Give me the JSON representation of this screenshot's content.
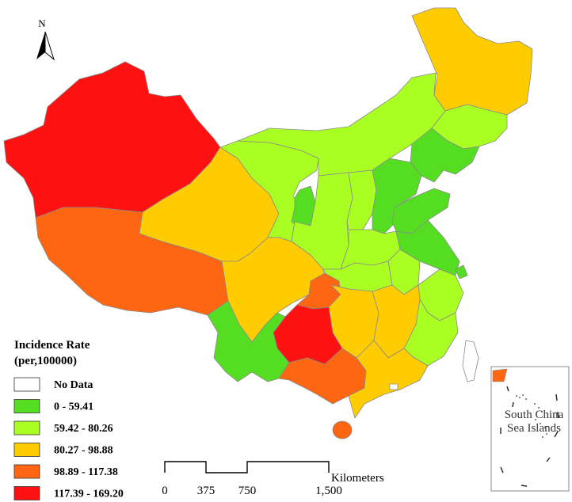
{
  "map": {
    "north_label": "N",
    "legend": {
      "title_line1": "Incidence Rate",
      "title_line2": "(per,100000)",
      "classes": [
        {
          "label": "No Data",
          "color": "#ffffff"
        },
        {
          "label": "0 - 59.41",
          "color": "#55dd22"
        },
        {
          "label": "59.42 - 80.26",
          "color": "#aaff22"
        },
        {
          "label": "80.27 - 98.88",
          "color": "#ffcc00"
        },
        {
          "label": "98.89 - 117.38",
          "color": "#ff6611"
        },
        {
          "label": "117.39 - 169.20",
          "color": "#ff1111"
        }
      ]
    },
    "scale_bar": {
      "unit": "Kilometers",
      "ticks": [
        "0",
        "375",
        "750",
        "1,500"
      ]
    },
    "inset": {
      "label_line1": "South China",
      "label_line2": "Sea Islands"
    }
  }
}
